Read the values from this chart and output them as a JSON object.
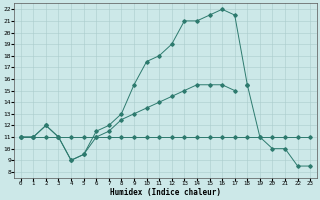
{
  "xlabel": "Humidex (Indice chaleur)",
  "bg_color": "#cce8e8",
  "grid_color": "#aacccc",
  "line_color": "#2d7a6e",
  "xlim": [
    -0.5,
    23.5
  ],
  "ylim": [
    7.5,
    22.5
  ],
  "xticks": [
    0,
    1,
    2,
    3,
    4,
    5,
    6,
    7,
    8,
    9,
    10,
    11,
    12,
    13,
    14,
    15,
    16,
    17,
    18,
    19,
    20,
    21,
    22,
    23
  ],
  "yticks": [
    8,
    9,
    10,
    11,
    12,
    13,
    14,
    15,
    16,
    17,
    18,
    19,
    20,
    21,
    22
  ],
  "line1_x": [
    0,
    1,
    2,
    3,
    4,
    5,
    6,
    7,
    8,
    9,
    10,
    11,
    12,
    13,
    14,
    15,
    16,
    17,
    18
  ],
  "line1_y": [
    11,
    11,
    12,
    11,
    9,
    9.5,
    11.5,
    12,
    13,
    15.5,
    17.5,
    18,
    19,
    21,
    21,
    21.5,
    22,
    21.5,
    15.5
  ],
  "line2_x": [
    0,
    1,
    2,
    3,
    4,
    5,
    6,
    7,
    8,
    9,
    10,
    11,
    12,
    13,
    14,
    15,
    16,
    17
  ],
  "line2_y": [
    11,
    11,
    12,
    11,
    9,
    9.5,
    11,
    11.5,
    12.5,
    13,
    13.5,
    14,
    14.5,
    15,
    15.5,
    15.5,
    15.5,
    15
  ],
  "line3_x": [
    0,
    1,
    2,
    3,
    4,
    5,
    6,
    7,
    8,
    9,
    10,
    11,
    12,
    13,
    14,
    15,
    16,
    17,
    18,
    19,
    20,
    21,
    22,
    23
  ],
  "line3_y": [
    11,
    11,
    11,
    11,
    11,
    11,
    11,
    11,
    11,
    11,
    11,
    11,
    11,
    11,
    11,
    11,
    11,
    11,
    11,
    11,
    11,
    11,
    11,
    11
  ],
  "line4_x": [
    18,
    19,
    20,
    21,
    22,
    23
  ],
  "line4_y": [
    15.5,
    11,
    10,
    10,
    8.5,
    8.5
  ]
}
